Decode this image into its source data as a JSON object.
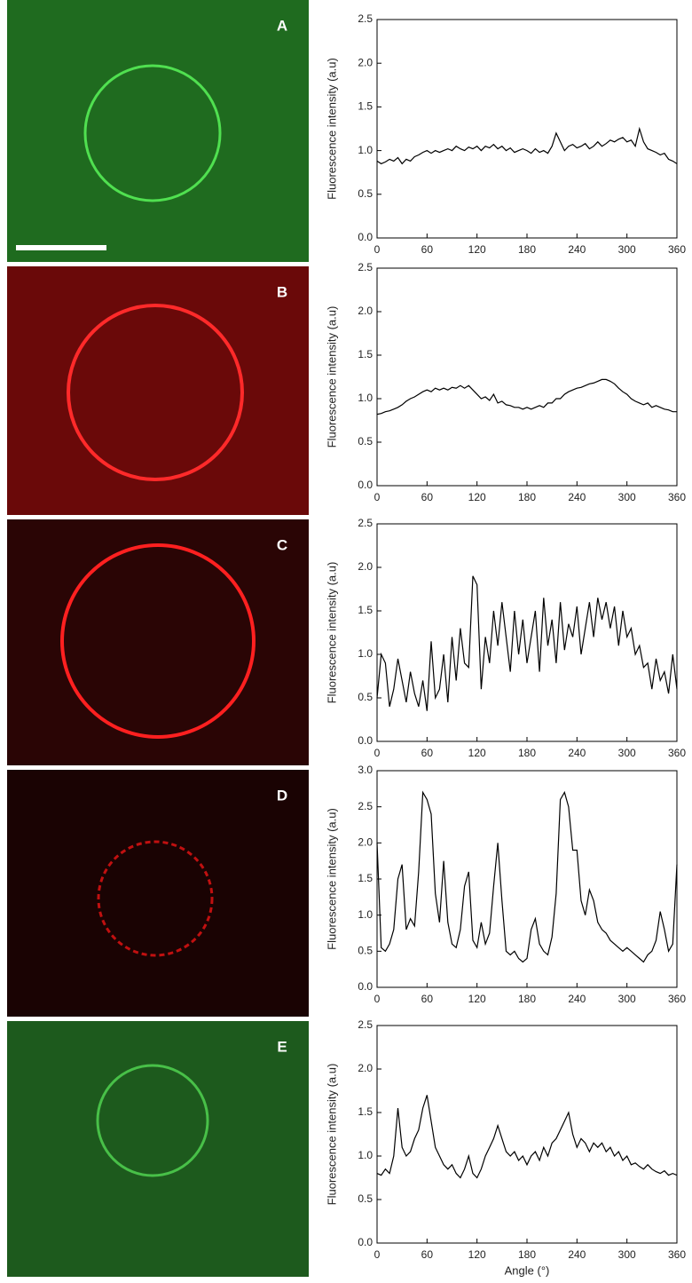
{
  "chart_data": [
    {
      "type": "line",
      "panel_label": "A",
      "y_label": "Fluorescence intensity (a.u)",
      "color": "#000000",
      "x": [
        0,
        5,
        10,
        15,
        20,
        25,
        30,
        35,
        40,
        45,
        50,
        55,
        60,
        65,
        70,
        75,
        80,
        85,
        90,
        95,
        100,
        105,
        110,
        115,
        120,
        125,
        130,
        135,
        140,
        145,
        150,
        155,
        160,
        165,
        170,
        175,
        180,
        185,
        190,
        195,
        200,
        205,
        210,
        215,
        220,
        225,
        230,
        235,
        240,
        245,
        250,
        255,
        260,
        265,
        270,
        275,
        280,
        285,
        290,
        295,
        300,
        305,
        310,
        315,
        320,
        325,
        330,
        335,
        340,
        345,
        350,
        355,
        360
      ],
      "values": [
        0.88,
        0.85,
        0.87,
        0.9,
        0.88,
        0.92,
        0.85,
        0.9,
        0.88,
        0.93,
        0.95,
        0.98,
        1.0,
        0.97,
        1.0,
        0.98,
        1.0,
        1.02,
        1.0,
        1.05,
        1.02,
        1.0,
        1.04,
        1.02,
        1.05,
        1.0,
        1.05,
        1.03,
        1.07,
        1.02,
        1.05,
        1.0,
        1.03,
        0.98,
        1.0,
        1.02,
        1.0,
        0.97,
        1.02,
        0.98,
        1.0,
        0.97,
        1.05,
        1.2,
        1.1,
        1.0,
        1.05,
        1.07,
        1.03,
        1.05,
        1.08,
        1.02,
        1.05,
        1.1,
        1.05,
        1.08,
        1.12,
        1.1,
        1.13,
        1.15,
        1.1,
        1.12,
        1.05,
        1.25,
        1.1,
        1.02,
        1.0,
        0.98,
        0.95,
        0.97,
        0.9,
        0.88,
        0.85
      ],
      "xlim": [
        0,
        360
      ],
      "xticks": [
        0,
        60,
        120,
        180,
        240,
        300,
        360
      ],
      "ylim": [
        0,
        2.5
      ],
      "yticks": [
        {
          "value": 0,
          "label": "0.0"
        },
        {
          "value": 0.5,
          "label": "0.5"
        },
        {
          "value": 1,
          "label": "1.0"
        },
        {
          "value": 1.5,
          "label": "1.5"
        },
        {
          "value": 2,
          "label": "2.0"
        },
        {
          "value": 2.5,
          "label": "2.5"
        }
      ]
    },
    {
      "type": "line",
      "panel_label": "B",
      "y_label": "Fluorescence intensity (a.u)",
      "color": "#000000",
      "x": [
        0,
        5,
        10,
        15,
        20,
        25,
        30,
        35,
        40,
        45,
        50,
        55,
        60,
        65,
        70,
        75,
        80,
        85,
        90,
        95,
        100,
        105,
        110,
        115,
        120,
        125,
        130,
        135,
        140,
        145,
        150,
        155,
        160,
        165,
        170,
        175,
        180,
        185,
        190,
        195,
        200,
        205,
        210,
        215,
        220,
        225,
        230,
        235,
        240,
        245,
        250,
        255,
        260,
        265,
        270,
        275,
        280,
        285,
        290,
        295,
        300,
        305,
        310,
        315,
        320,
        325,
        330,
        335,
        340,
        345,
        350,
        355,
        360
      ],
      "values": [
        0.82,
        0.83,
        0.85,
        0.86,
        0.88,
        0.9,
        0.93,
        0.97,
        1.0,
        1.02,
        1.05,
        1.08,
        1.1,
        1.08,
        1.12,
        1.1,
        1.12,
        1.1,
        1.13,
        1.12,
        1.15,
        1.12,
        1.15,
        1.1,
        1.05,
        1.0,
        1.02,
        0.98,
        1.05,
        0.95,
        0.97,
        0.93,
        0.92,
        0.9,
        0.9,
        0.88,
        0.9,
        0.88,
        0.9,
        0.92,
        0.9,
        0.95,
        0.95,
        1.0,
        1.0,
        1.05,
        1.08,
        1.1,
        1.12,
        1.13,
        1.15,
        1.17,
        1.18,
        1.2,
        1.22,
        1.22,
        1.2,
        1.17,
        1.12,
        1.08,
        1.05,
        1.0,
        0.97,
        0.95,
        0.93,
        0.95,
        0.9,
        0.92,
        0.9,
        0.88,
        0.87,
        0.85,
        0.85
      ],
      "xlim": [
        0,
        360
      ],
      "xticks": [
        0,
        60,
        120,
        180,
        240,
        300,
        360
      ],
      "ylim": [
        0,
        2.5
      ],
      "yticks": [
        {
          "value": 0,
          "label": "0.0"
        },
        {
          "value": 0.5,
          "label": "0.5"
        },
        {
          "value": 1,
          "label": "1.0"
        },
        {
          "value": 1.5,
          "label": "1.5"
        },
        {
          "value": 2,
          "label": "2.0"
        },
        {
          "value": 2.5,
          "label": "2.5"
        }
      ]
    },
    {
      "type": "line",
      "panel_label": "C",
      "y_label": "Fluorescence intensity (a.u)",
      "color": "#000000",
      "x": [
        0,
        5,
        10,
        15,
        20,
        25,
        30,
        35,
        40,
        45,
        50,
        55,
        60,
        65,
        70,
        75,
        80,
        85,
        90,
        95,
        100,
        105,
        110,
        115,
        120,
        125,
        130,
        135,
        140,
        145,
        150,
        155,
        160,
        165,
        170,
        175,
        180,
        185,
        190,
        195,
        200,
        205,
        210,
        215,
        220,
        225,
        230,
        235,
        240,
        245,
        250,
        255,
        260,
        265,
        270,
        275,
        280,
        285,
        290,
        295,
        300,
        305,
        310,
        315,
        320,
        325,
        330,
        335,
        340,
        345,
        350,
        355,
        360
      ],
      "values": [
        0.5,
        1.0,
        0.9,
        0.4,
        0.6,
        0.95,
        0.7,
        0.45,
        0.8,
        0.55,
        0.4,
        0.7,
        0.35,
        1.15,
        0.5,
        0.6,
        1.0,
        0.45,
        1.2,
        0.7,
        1.3,
        0.9,
        0.85,
        1.9,
        1.8,
        0.6,
        1.2,
        0.9,
        1.5,
        1.1,
        1.6,
        1.2,
        0.8,
        1.5,
        1.0,
        1.4,
        0.9,
        1.2,
        1.5,
        0.8,
        1.65,
        1.1,
        1.4,
        0.9,
        1.6,
        1.05,
        1.35,
        1.2,
        1.55,
        1.0,
        1.3,
        1.6,
        1.2,
        1.65,
        1.4,
        1.6,
        1.3,
        1.55,
        1.1,
        1.5,
        1.2,
        1.3,
        1.0,
        1.1,
        0.85,
        0.9,
        0.6,
        0.95,
        0.7,
        0.8,
        0.55,
        1.0,
        0.6
      ],
      "xlim": [
        0,
        360
      ],
      "xticks": [
        0,
        60,
        120,
        180,
        240,
        300,
        360
      ],
      "ylim": [
        0,
        2.5
      ],
      "yticks": [
        {
          "value": 0,
          "label": "0.0"
        },
        {
          "value": 0.5,
          "label": "0.5"
        },
        {
          "value": 1,
          "label": "1.0"
        },
        {
          "value": 1.5,
          "label": "1.5"
        },
        {
          "value": 2,
          "label": "2.0"
        },
        {
          "value": 2.5,
          "label": "2.5"
        }
      ]
    },
    {
      "type": "line",
      "panel_label": "D",
      "y_label": "Fluorescence intensity (a.u)",
      "color": "#000000",
      "x": [
        0,
        5,
        10,
        15,
        20,
        25,
        30,
        35,
        40,
        45,
        50,
        55,
        60,
        65,
        70,
        75,
        80,
        85,
        90,
        95,
        100,
        105,
        110,
        115,
        120,
        125,
        130,
        135,
        140,
        145,
        150,
        155,
        160,
        165,
        170,
        175,
        180,
        185,
        190,
        195,
        200,
        205,
        210,
        215,
        220,
        225,
        230,
        235,
        240,
        245,
        250,
        255,
        260,
        265,
        270,
        275,
        280,
        285,
        290,
        295,
        300,
        305,
        310,
        315,
        320,
        325,
        330,
        335,
        340,
        345,
        350,
        355,
        360
      ],
      "values": [
        2.0,
        0.55,
        0.5,
        0.6,
        0.8,
        1.5,
        1.7,
        0.8,
        0.95,
        0.85,
        1.6,
        2.7,
        2.6,
        2.4,
        1.3,
        0.9,
        1.75,
        0.9,
        0.6,
        0.55,
        0.8,
        1.4,
        1.6,
        0.65,
        0.55,
        0.9,
        0.6,
        0.75,
        1.4,
        2.0,
        1.2,
        0.5,
        0.45,
        0.5,
        0.4,
        0.35,
        0.4,
        0.8,
        0.95,
        0.6,
        0.5,
        0.45,
        0.7,
        1.3,
        2.6,
        2.7,
        2.5,
        1.9,
        1.9,
        1.2,
        1.0,
        1.35,
        1.2,
        0.9,
        0.8,
        0.75,
        0.65,
        0.6,
        0.55,
        0.5,
        0.55,
        0.5,
        0.45,
        0.4,
        0.35,
        0.45,
        0.5,
        0.65,
        1.05,
        0.8,
        0.5,
        0.6,
        1.7
      ],
      "xlim": [
        0,
        360
      ],
      "xticks": [
        0,
        60,
        120,
        180,
        240,
        300,
        360
      ],
      "ylim": [
        0,
        3
      ],
      "yticks": [
        {
          "value": 0,
          "label": "0.0"
        },
        {
          "value": 0.5,
          "label": "0.5"
        },
        {
          "value": 1,
          "label": "1.0"
        },
        {
          "value": 1.5,
          "label": "1.5"
        },
        {
          "value": 2,
          "label": "2.0"
        },
        {
          "value": 2.5,
          "label": "2.5"
        },
        {
          "value": 3,
          "label": "3.0"
        }
      ]
    },
    {
      "type": "line",
      "panel_label": "E",
      "y_label": "Fluorescence intensity (a.u)",
      "x_label": "Angle (°)",
      "color": "#000000",
      "x": [
        0,
        5,
        10,
        15,
        20,
        25,
        30,
        35,
        40,
        45,
        50,
        55,
        60,
        65,
        70,
        75,
        80,
        85,
        90,
        95,
        100,
        105,
        110,
        115,
        120,
        125,
        130,
        135,
        140,
        145,
        150,
        155,
        160,
        165,
        170,
        175,
        180,
        185,
        190,
        195,
        200,
        205,
        210,
        215,
        220,
        225,
        230,
        235,
        240,
        245,
        250,
        255,
        260,
        265,
        270,
        275,
        280,
        285,
        290,
        295,
        300,
        305,
        310,
        315,
        320,
        325,
        330,
        335,
        340,
        345,
        350,
        355,
        360
      ],
      "values": [
        0.8,
        0.78,
        0.85,
        0.8,
        1.0,
        1.55,
        1.1,
        1.0,
        1.05,
        1.2,
        1.3,
        1.55,
        1.7,
        1.4,
        1.1,
        1.0,
        0.9,
        0.85,
        0.9,
        0.8,
        0.75,
        0.85,
        1.0,
        0.8,
        0.75,
        0.85,
        1.0,
        1.1,
        1.2,
        1.35,
        1.2,
        1.05,
        1.0,
        1.05,
        0.95,
        1.0,
        0.9,
        1.0,
        1.05,
        0.95,
        1.1,
        1.0,
        1.15,
        1.2,
        1.3,
        1.4,
        1.5,
        1.25,
        1.1,
        1.2,
        1.15,
        1.05,
        1.15,
        1.1,
        1.15,
        1.05,
        1.1,
        1.0,
        1.05,
        0.95,
        1.0,
        0.9,
        0.92,
        0.88,
        0.85,
        0.9,
        0.85,
        0.82,
        0.8,
        0.83,
        0.78,
        0.8,
        0.78
      ],
      "xlim": [
        0,
        360
      ],
      "xticks": [
        0,
        60,
        120,
        180,
        240,
        300,
        360
      ],
      "ylim": [
        0,
        2.5
      ],
      "yticks": [
        {
          "value": 0,
          "label": "0.0"
        },
        {
          "value": 0.5,
          "label": "0.5"
        },
        {
          "value": 1,
          "label": "1.0"
        },
        {
          "value": 1.5,
          "label": "1.5"
        },
        {
          "value": 2,
          "label": "2.0"
        },
        {
          "value": 2.5,
          "label": "2.5"
        }
      ]
    }
  ]
}
